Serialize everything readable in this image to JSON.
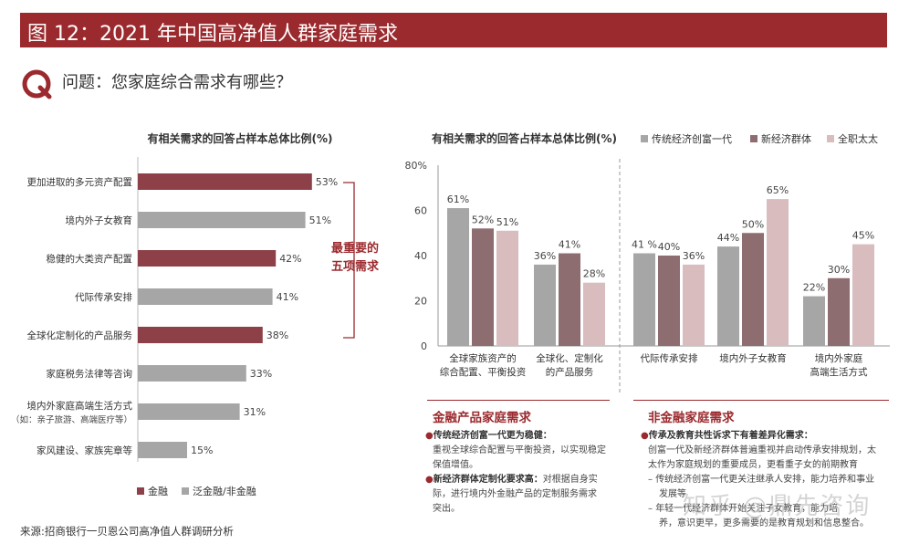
{
  "title": "图 12：2021 年中国高净值人群家庭需求",
  "question": "问题：您家庭综合需求有哪些？",
  "colors": {
    "dark": "#8e4048",
    "gray": "#a6a6a6",
    "mid": "#8e6d71",
    "light": "#d8bcbe",
    "accent": "#9b2a2e"
  },
  "chart_data": [
    {
      "type": "bar",
      "orientation": "horizontal",
      "title": "有相关需求的回答占样本总体比例(%)",
      "categories": [
        "更加进取的多元资产配置",
        "境内外子女教育",
        "稳健的大类资产配置",
        "代际传承安排",
        "全球化定制化的产品服务",
        "家庭税务法律等咨询",
        "境内外家庭高端生活方式",
        "家风建设、家族宪章等"
      ],
      "category_notes": [
        "",
        "",
        "",
        "",
        "",
        "",
        "（如：亲子旅游、高端医疗等）",
        ""
      ],
      "values": [
        53,
        51,
        42,
        41,
        38,
        33,
        31,
        15
      ],
      "value_labels": [
        "53%",
        "51%",
        "42%",
        "41%",
        "38%",
        "33%",
        "31%",
        "15%"
      ],
      "group": [
        "金融",
        "泛金融",
        "金融",
        "泛金融",
        "金融",
        "泛金融",
        "泛金融",
        "泛金融"
      ],
      "legend": [
        "金融",
        "泛金融/非金融"
      ],
      "annotation": [
        "最重要的",
        "五项需求"
      ]
    },
    {
      "type": "bar",
      "orientation": "vertical",
      "title": "有相关需求的回答占样本总体比例(%)",
      "ylim": [
        0,
        80
      ],
      "yticks": [
        "0",
        "20",
        "40",
        "60",
        "80%"
      ],
      "series": [
        {
          "name": "传统经济创富一代",
          "values": [
            61,
            36,
            41,
            44,
            22
          ],
          "labels": [
            "61%",
            "36%",
            "41 %",
            "44%",
            "22%"
          ]
        },
        {
          "name": "新经济群体",
          "values": [
            52,
            41,
            40,
            50,
            30
          ],
          "labels": [
            "52%",
            "41%",
            "40%",
            "50%",
            "30%"
          ]
        },
        {
          "name": "全职太太",
          "values": [
            51,
            28,
            36,
            65,
            45
          ],
          "labels": [
            "51%",
            "28%",
            "36%",
            "65%",
            "45%"
          ]
        }
      ],
      "categories": [
        [
          "全球家族资产的",
          "综合配置、平衡投资"
        ],
        [
          "全球化、定制化",
          "的产品服务"
        ],
        [
          "代际传承安排"
        ],
        [
          "境内外子女教育"
        ],
        [
          "境内外家庭",
          "高端生活方式"
        ]
      ]
    }
  ],
  "left_panel": {
    "heading": "金融产品家庭需求",
    "items": [
      {
        "lead": "传统经济创富一代更为稳健：",
        "text": [
          "重视全球综合配置与平衡投资，以实现稳定",
          "保值增值。"
        ]
      },
      {
        "lead": "新经济群体定制化要求高：",
        "lead_rest": "对根据自身实",
        "text": [
          "际，进行境内外金融产品的定制服务需求",
          "突出。"
        ]
      }
    ]
  },
  "right_panel": {
    "heading": "非金融家庭需求",
    "lead": "传承及教育共性诉求下有着差异化需求：",
    "lines": [
      "创富一代及新经济群体普遍重视并启动传承安排规划，太",
      "太作为家庭规划的重要成员，更看重子女的前期教育"
    ],
    "sub": [
      {
        "text": [
          "传统经济创富一代更关注继承人安排，能力培养和事业",
          "发展等"
        ]
      },
      {
        "text": [
          "年轻一代经济群体开始关注子女教育，能力培",
          "养，意识更早，更多需要的是教育规划和信息整合。"
        ]
      }
    ]
  },
  "watermark": "知乎 @鼎先咨询",
  "source": "来源:招商银行一贝恩公司高净值人群调研分析"
}
